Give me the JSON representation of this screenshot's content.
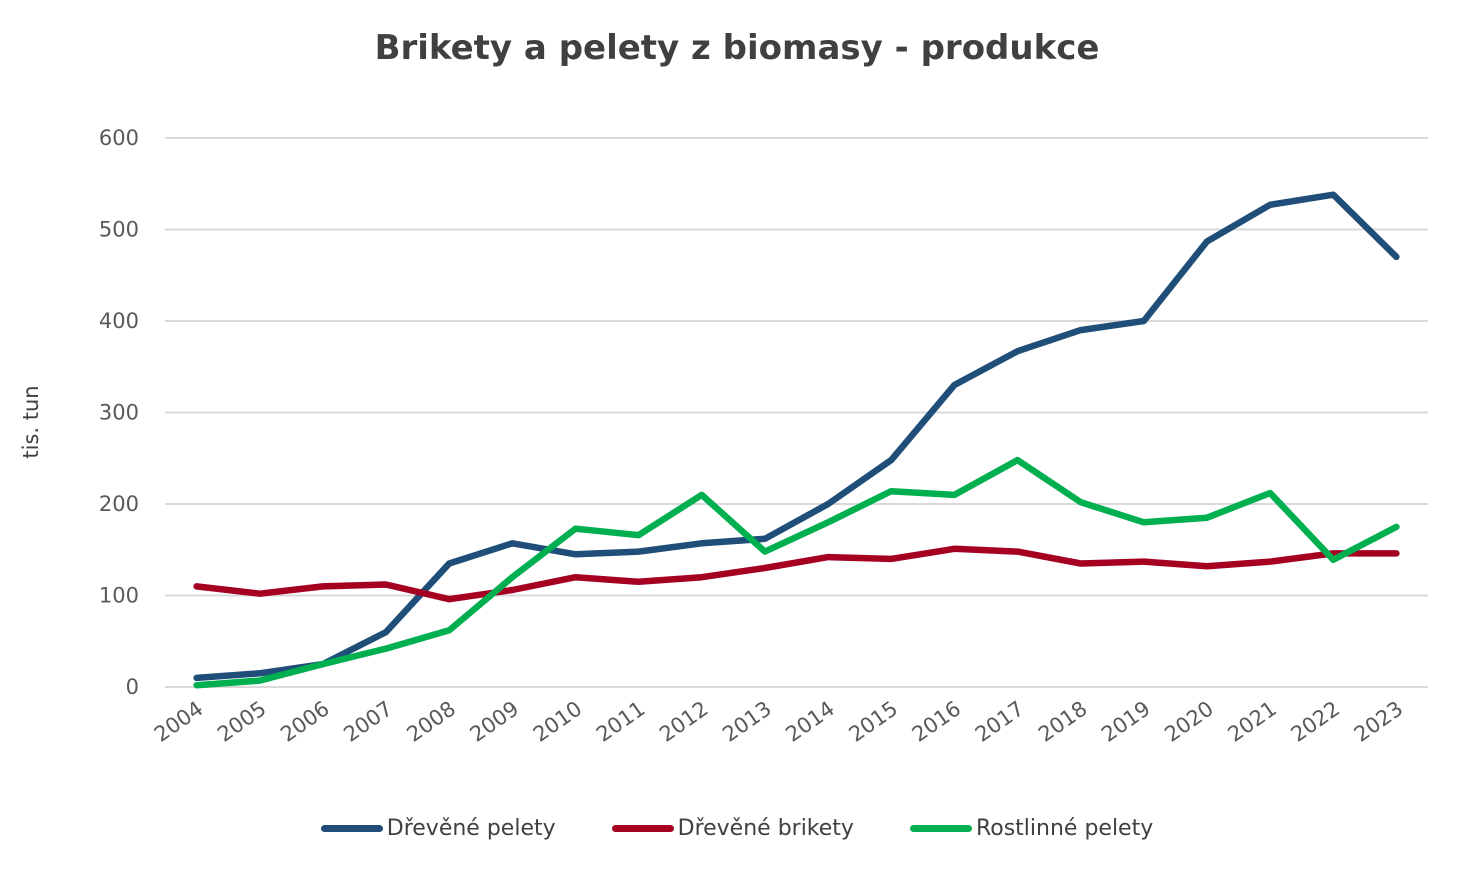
{
  "chart_data": {
    "type": "line",
    "title": "Brikety a pelety z biomasy - produkce",
    "xlabel": "",
    "ylabel": "tis. tun",
    "ylim": [
      0,
      600
    ],
    "yticks": [
      0,
      100,
      200,
      300,
      400,
      500,
      600
    ],
    "grid": true,
    "legend": "bottom",
    "categories": [
      "2004",
      "2005",
      "2006",
      "2007",
      "2008",
      "2009",
      "2010",
      "2011",
      "2012",
      "2013",
      "2014",
      "2015",
      "2016",
      "2017",
      "2018",
      "2019",
      "2020",
      "2021",
      "2022",
      "2023"
    ],
    "series": [
      {
        "name": "Dřevěné pelety",
        "color": "#1f4e79",
        "values": [
          10,
          15,
          25,
          60,
          135,
          157,
          145,
          148,
          157,
          162,
          200,
          248,
          330,
          367,
          390,
          400,
          487,
          527,
          538,
          470
        ]
      },
      {
        "name": "Dřevěné brikety",
        "color": "#a50021",
        "values": [
          110,
          102,
          110,
          112,
          96,
          106,
          120,
          115,
          120,
          130,
          142,
          140,
          151,
          148,
          135,
          137,
          132,
          137,
          146,
          146
        ]
      },
      {
        "name": "Rostlinné pelety",
        "color": "#00b050",
        "values": [
          2,
          7,
          25,
          42,
          62,
          120,
          173,
          166,
          210,
          148,
          180,
          214,
          210,
          248,
          202,
          180,
          185,
          212,
          139,
          175
        ]
      }
    ]
  }
}
